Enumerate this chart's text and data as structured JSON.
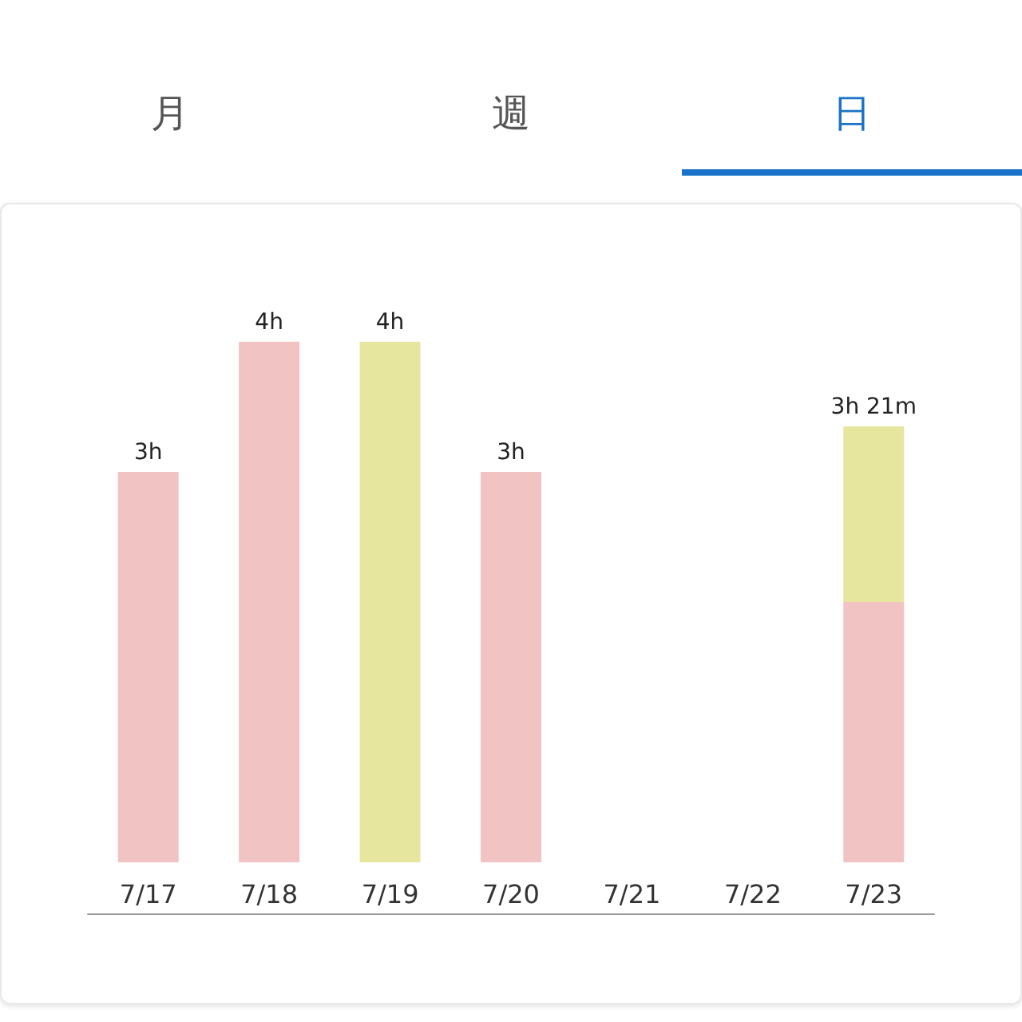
{
  "chart_data": {
    "type": "bar",
    "stacked": true,
    "annotations": [
      "月",
      "週",
      "日"
    ],
    "categories": [
      "7/17",
      "7/18",
      "7/19",
      "7/20",
      "7/21",
      "7/22",
      "7/23"
    ],
    "series": [
      {
        "color": "#f2c3c3",
        "values": [
          3,
          4,
          null,
          3,
          null,
          null,
          2
        ],
        "value_labels": [
          "3h",
          "4h",
          null,
          "3h",
          null,
          null,
          null
        ]
      },
      {
        "color": "#e6e69f",
        "values": [
          null,
          null,
          4,
          null,
          null,
          null,
          1.35
        ],
        "value_labels": [
          null,
          null,
          "4h",
          null,
          null,
          null,
          null
        ]
      }
    ],
    "totals": [
      null,
      null,
      null,
      null,
      null,
      null,
      "3h 21m"
    ],
    "grid": false
  }
}
